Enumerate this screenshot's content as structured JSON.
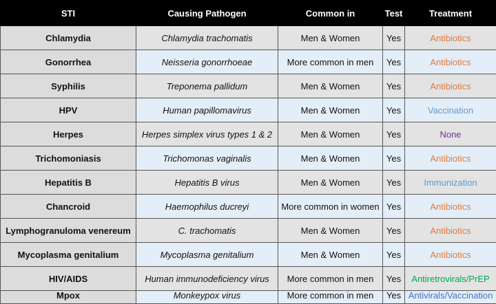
{
  "table": {
    "header": [
      "STI",
      "Causing Pathogen",
      "Common in",
      "Test",
      "Treatment"
    ],
    "rows": [
      {
        "cells": [
          "Chlamydia",
          "Chlamydia trachomatis",
          "Men & Women",
          "Yes",
          "Antibiotics"
        ],
        "treatment_color": "#e2793a"
      },
      {
        "cells": [
          "Gonorrhea",
          "Neisseria gonorrhoeae",
          "More common in men",
          "Yes",
          "Antibiotics"
        ],
        "treatment_color": "#e2793a"
      },
      {
        "cells": [
          "Syphilis",
          "Treponema pallidum",
          "Men & Women",
          "Yes",
          "Antibiotics"
        ],
        "treatment_color": "#e2793a"
      },
      {
        "cells": [
          "HPV",
          "Human papillomavirus",
          "Men & Women",
          "Yes",
          "Vaccination"
        ],
        "treatment_color": "#5b9bd5"
      },
      {
        "cells": [
          "Herpes",
          "Herpes simplex virus types 1 & 2",
          "Men & Women",
          "Yes",
          "None"
        ],
        "treatment_color": "#7030a0"
      },
      {
        "cells": [
          "Trichomoniasis",
          "Trichomonas vaginalis",
          "Men & Women",
          "Yes",
          "Antibiotics"
        ],
        "treatment_color": "#e2793a"
      },
      {
        "cells": [
          "Hepatitis B",
          "Hepatitis B virus",
          "Men & Women",
          "Yes",
          "Immunization"
        ],
        "treatment_color": "#5b9bd5"
      },
      {
        "cells": [
          "Chancroid",
          "Haemophilus ducreyi",
          "More common in women",
          "Yes",
          "Antibiotics"
        ],
        "treatment_color": "#e2793a"
      },
      {
        "cells": [
          "Lymphogranuloma venereum",
          "C. trachomatis",
          "Men & Women",
          "Yes",
          "Antibiotics"
        ],
        "treatment_color": "#e2793a"
      },
      {
        "cells": [
          "Mycoplasma genitalium",
          "Mycoplasma genitalium",
          "Men & Women",
          "Yes",
          "Antibiotics"
        ],
        "treatment_color": "#e2793a"
      },
      {
        "cells": [
          "HIV/AIDS",
          "Human immunodeficiency virus",
          "More common in men",
          "Yes",
          "Antiretrovirals/PrEP"
        ],
        "treatment_color": "#00a650"
      },
      {
        "cells": [
          "Mpox",
          "Monkeypox virus",
          "More common in men",
          "Yes",
          "Antivirals/Vaccination"
        ],
        "treatment_color": "#4472c4"
      }
    ]
  }
}
